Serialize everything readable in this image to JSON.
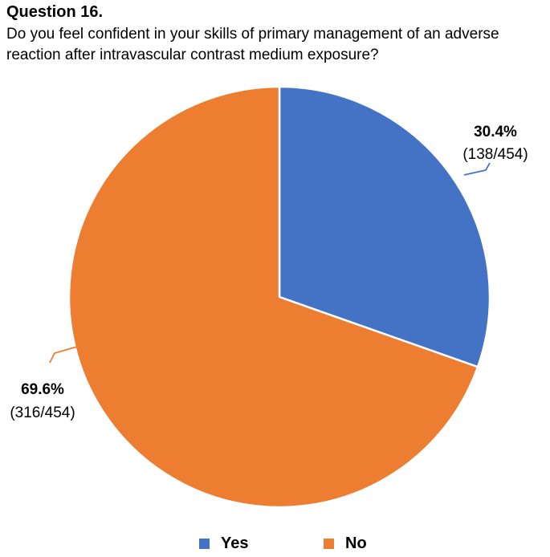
{
  "header": {
    "title": "Question 16.",
    "question": "Do you feel confident in your skills of primary management of an adverse reaction after intravascular contrast medium exposure?"
  },
  "colors": {
    "yes": "#4472C4",
    "no": "#ED7D31",
    "border": "#ffffff"
  },
  "chart_data": {
    "type": "pie",
    "title": "Question 16.",
    "subtitle": "Do you feel confident in your skills of primary management of an adverse reaction after intravascular contrast medium exposure?",
    "total": 454,
    "slices": [
      {
        "name": "Yes",
        "value": 138,
        "percent_label": "30.4%",
        "count_label": "(138/454)"
      },
      {
        "name": "No",
        "value": 316,
        "percent_label": "69.6%",
        "count_label": "(316/454)"
      }
    ],
    "legend": {
      "position": "bottom",
      "entries": [
        "Yes",
        "No"
      ]
    }
  }
}
